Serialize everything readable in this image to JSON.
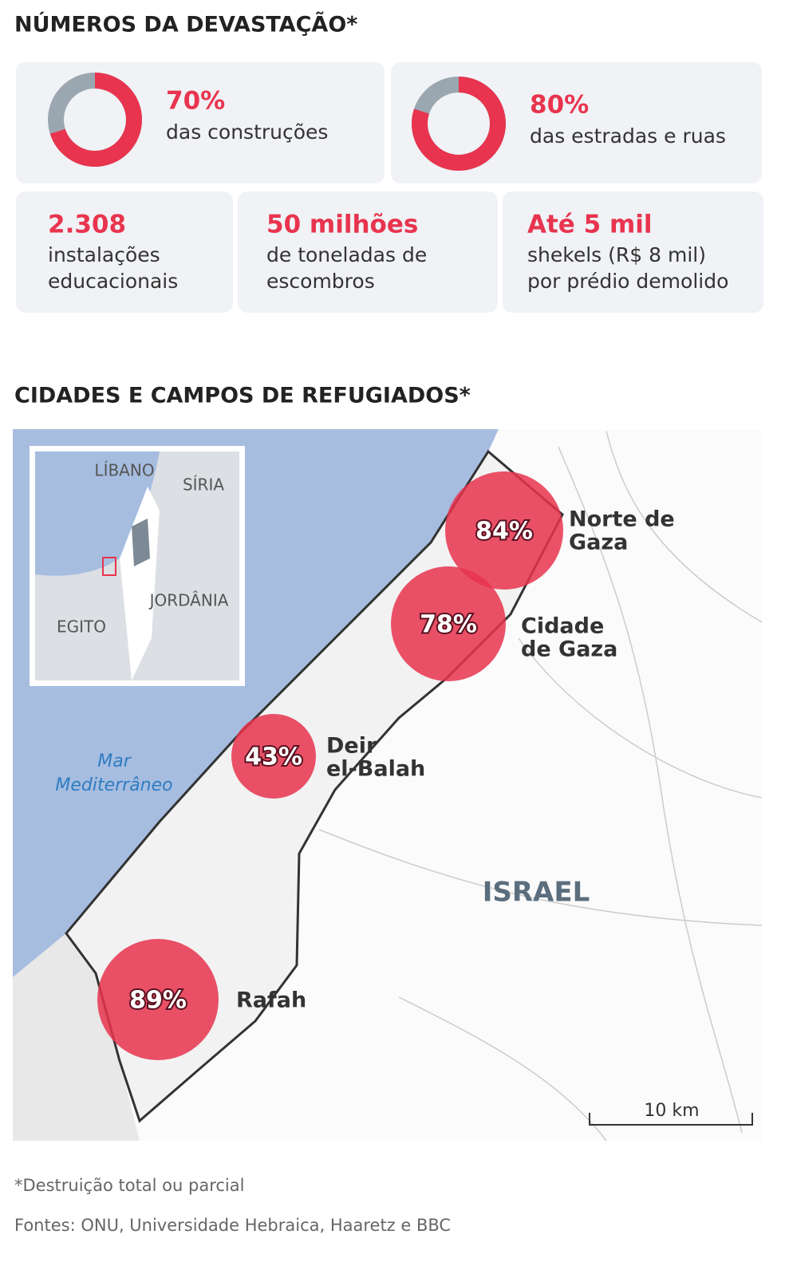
{
  "stats": {
    "title": "NÚMEROS DA DEVASTAÇÃO*",
    "donuts": [
      {
        "value": 70,
        "value_label": "70%",
        "label": "das construções"
      },
      {
        "value": 80,
        "value_label": "80%",
        "label": "das estradas e ruas"
      }
    ],
    "cards": [
      {
        "value": "2.308",
        "lines": [
          "instalações",
          "educacionais"
        ]
      },
      {
        "value": "50 milhões",
        "lines": [
          "de toneladas de",
          "escombros"
        ]
      },
      {
        "value": "Até 5 mil",
        "lines": [
          "shekels (R$ 8 mil)",
          "por prédio demolido"
        ]
      }
    ]
  },
  "map": {
    "title": "CIDADES E CAMPOS DE REFUGIADOS*",
    "places": [
      {
        "name": [
          "Norte de",
          "Gaza"
        ],
        "value": 84,
        "value_label": "84%"
      },
      {
        "name": [
          "Cidade",
          "de Gaza"
        ],
        "value": 78,
        "value_label": "78%"
      },
      {
        "name": [
          "Deir",
          "el-Balah"
        ],
        "value": 43,
        "value_label": "43%"
      },
      {
        "name": [
          "Rafah"
        ],
        "value": 89,
        "value_label": "89%"
      }
    ],
    "inset_labels": [
      "LÍBANO",
      "SÍRIA",
      "JORDÂNIA",
      "EGITO"
    ],
    "sea": [
      "Mar",
      "Mediterrâneo"
    ],
    "country": "ISRAEL",
    "scale": "10 km"
  },
  "footnote": "*Destruição total ou parcial",
  "sources": "Fontes: ONU, Universidade Hebraica, Haaretz e BBC"
}
